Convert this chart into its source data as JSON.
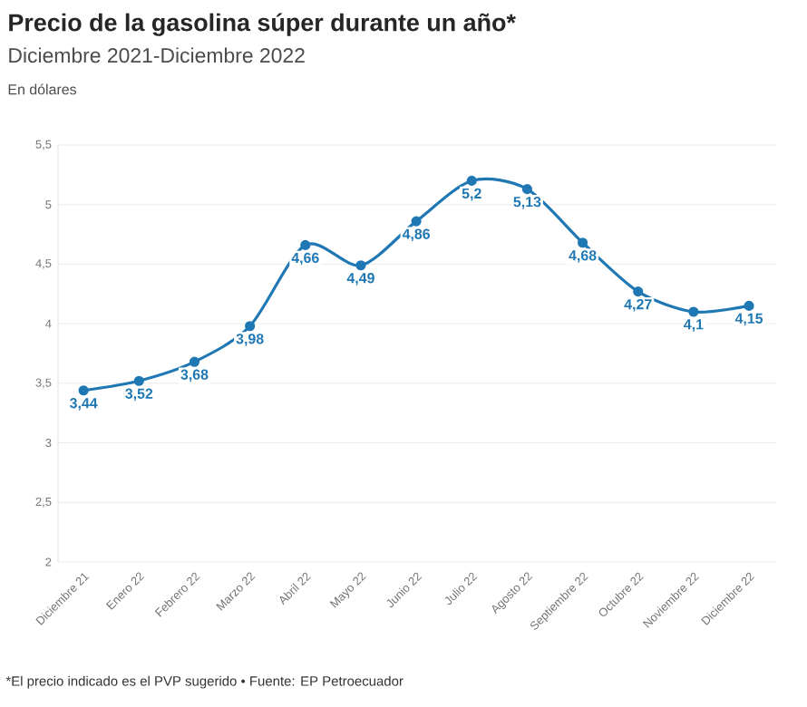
{
  "chart_data": {
    "type": "line",
    "title": "Precio de la gasolina súper durante un año*",
    "subtitle": "Diciembre 2021-Diciembre 2022",
    "ylabel": "En dólares",
    "annotations": [
      "*El precio indicado es el PVP sugerido • Fuente: EP Petroecuador"
    ],
    "categories": [
      "Diciembre 21",
      "Enero 22",
      "Febrero 22",
      "Marzo 22",
      "Abril 22",
      "Mayo 22",
      "Junio 22",
      "Julio 22",
      "Agosto 22",
      "Septiembre 22",
      "Octubre 22",
      "Noviembre 22",
      "Diciembre 22"
    ],
    "values": [
      3.44,
      3.52,
      3.68,
      3.98,
      4.66,
      4.49,
      4.86,
      5.2,
      5.13,
      4.68,
      4.27,
      4.1,
      4.15
    ],
    "value_labels": [
      "3,44",
      "3,52",
      "3,68",
      "3,98",
      "4,66",
      "4,49",
      "4,86",
      "5,2",
      "5,13",
      "4,68",
      "4,27",
      "4,1",
      "4,15"
    ],
    "color": "#1f78b4",
    "ylim": [
      2,
      5.5
    ],
    "yticks": [
      2,
      {
        "value": 2.5,
        "label": "2,5"
      },
      3,
      {
        "value": 3.5,
        "label": "3,5"
      },
      4,
      {
        "value": 4.5,
        "label": "4,5"
      },
      5,
      {
        "value": 5.5,
        "label": "5,5"
      }
    ],
    "grid": "y",
    "marker": "circle",
    "line_style": "solid"
  }
}
